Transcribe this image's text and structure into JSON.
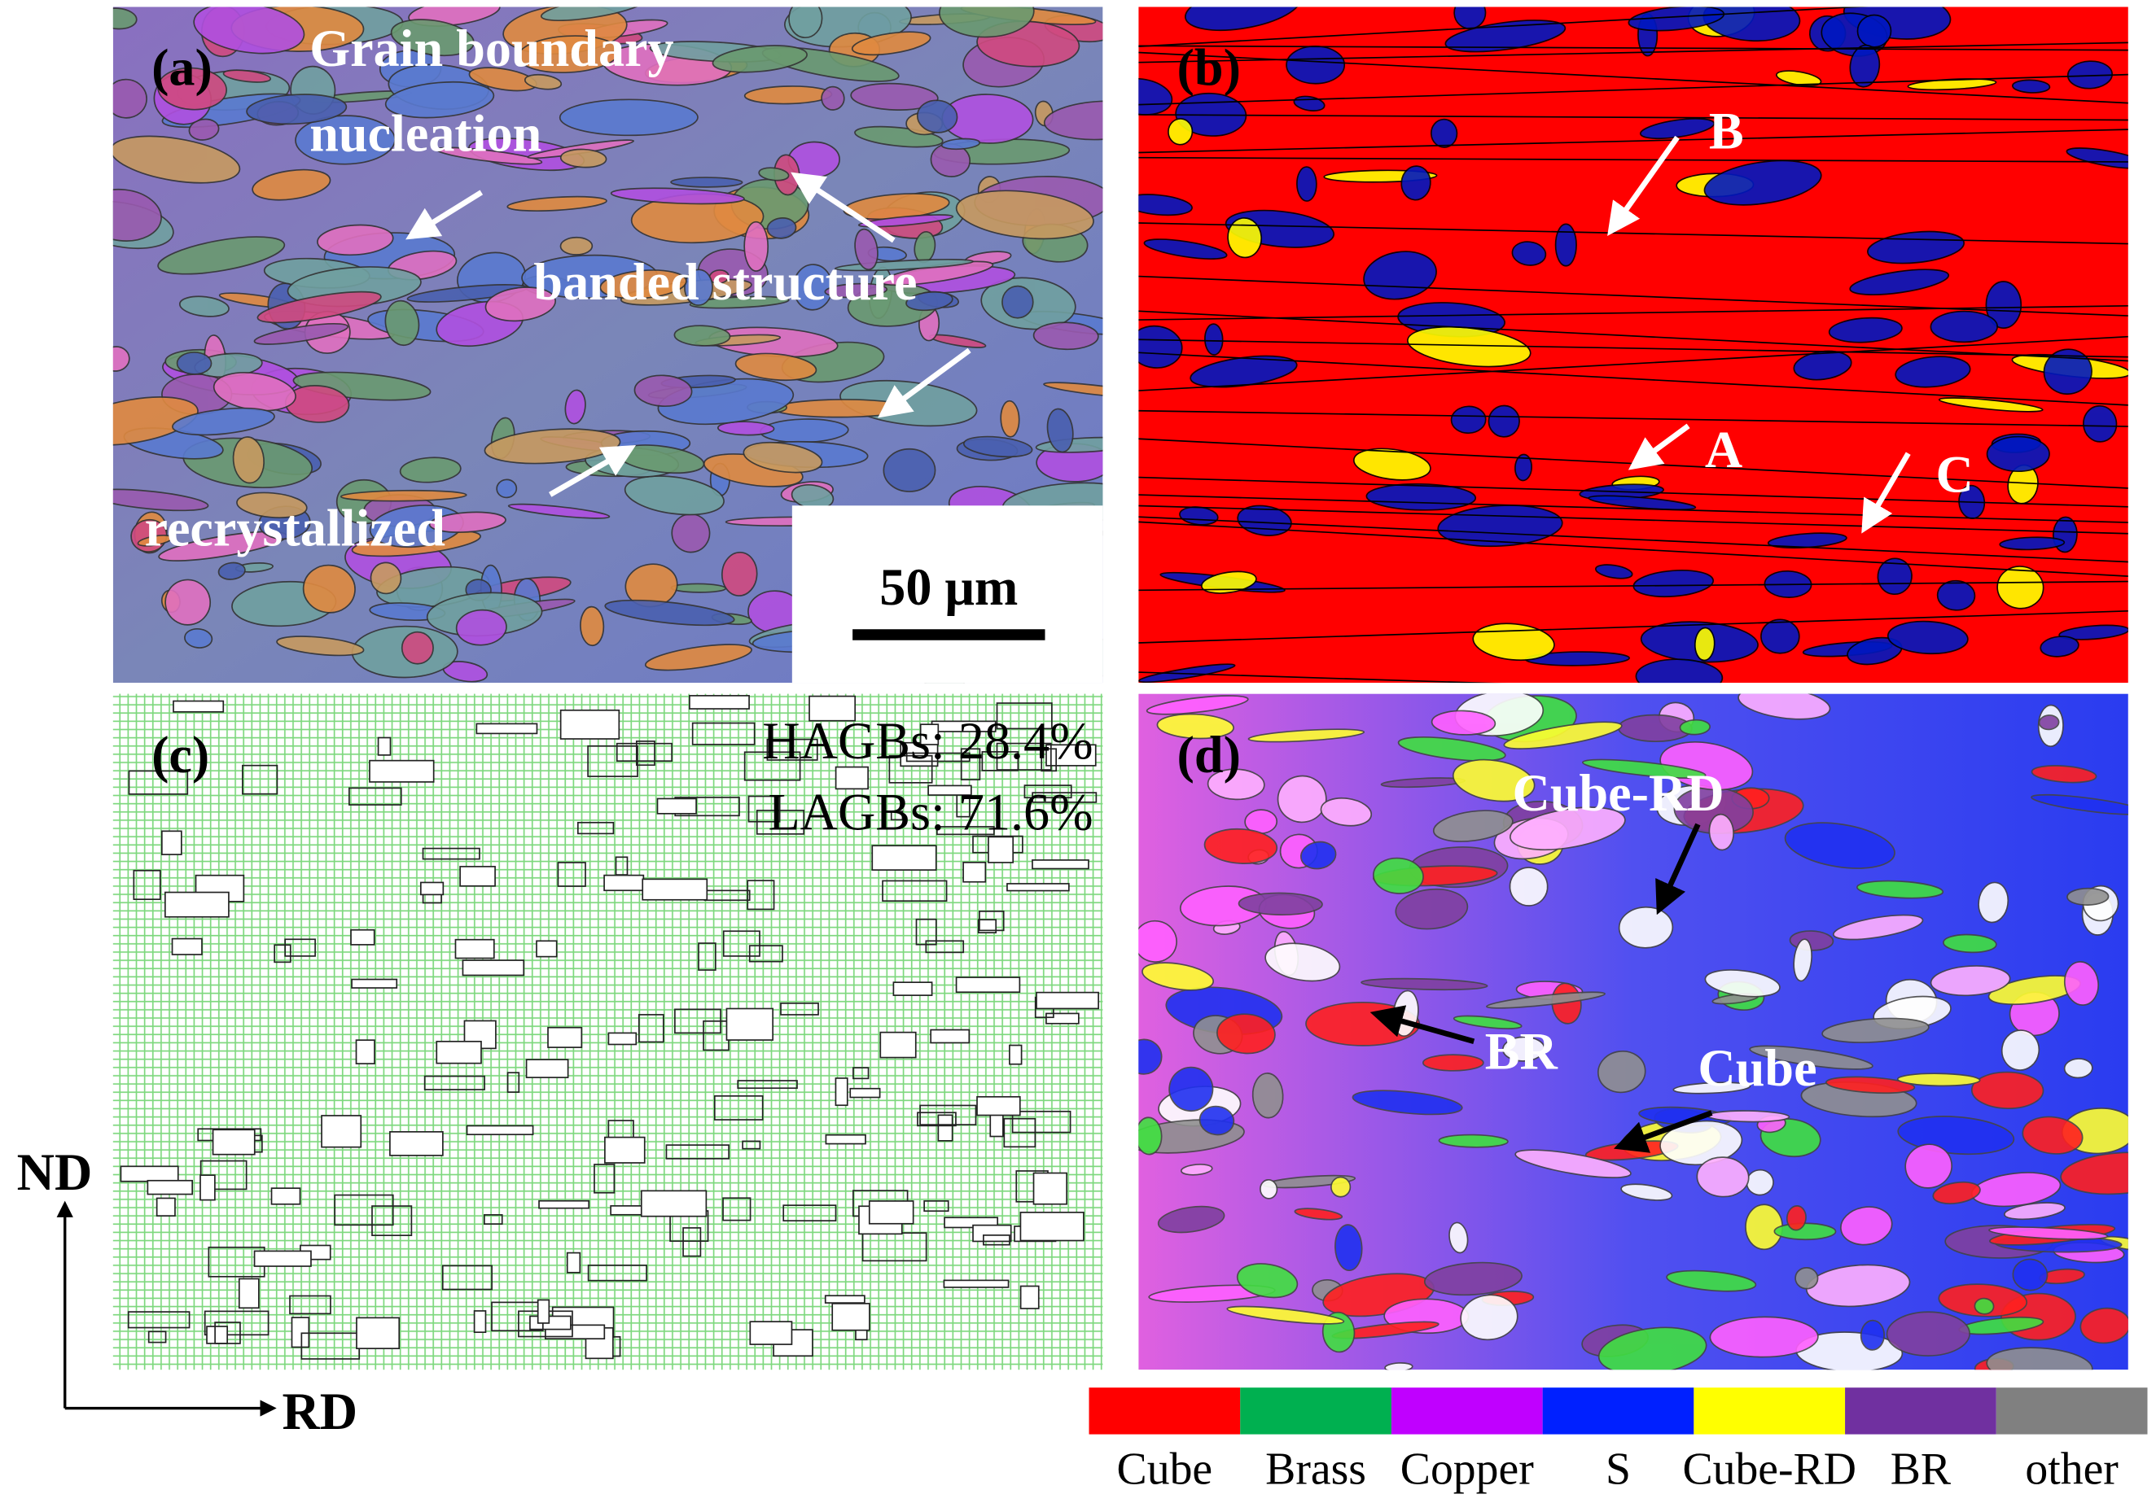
{
  "panels": [
    {
      "label": "(a)",
      "annotations": [
        "Grain boundary",
        "nucleation",
        "banded structure",
        "recrystallized"
      ],
      "scale_bar": "50 μm"
    },
    {
      "label": "(b)",
      "annotations": [
        "B",
        "A",
        "C"
      ]
    },
    {
      "label": "(c)",
      "annotations": [
        "HAGBs: 28.4%",
        "LAGBs: 71.6%"
      ]
    },
    {
      "label": "(d)",
      "annotations": [
        "Cube-RD",
        "BR",
        "Cube"
      ]
    }
  ],
  "axes": {
    "vertical": "ND",
    "horizontal": "RD"
  },
  "legend": [
    {
      "name": "Cube",
      "color": "#ff0000"
    },
    {
      "name": "Brass",
      "color": "#00b050"
    },
    {
      "name": "Copper",
      "color": "#c000ff"
    },
    {
      "name": "S",
      "color": "#0020ff"
    },
    {
      "name": "Cube-RD",
      "color": "#ffff00"
    },
    {
      "name": "BR",
      "color": "#7030a0"
    },
    {
      "name": "other",
      "color": "#808080"
    }
  ]
}
